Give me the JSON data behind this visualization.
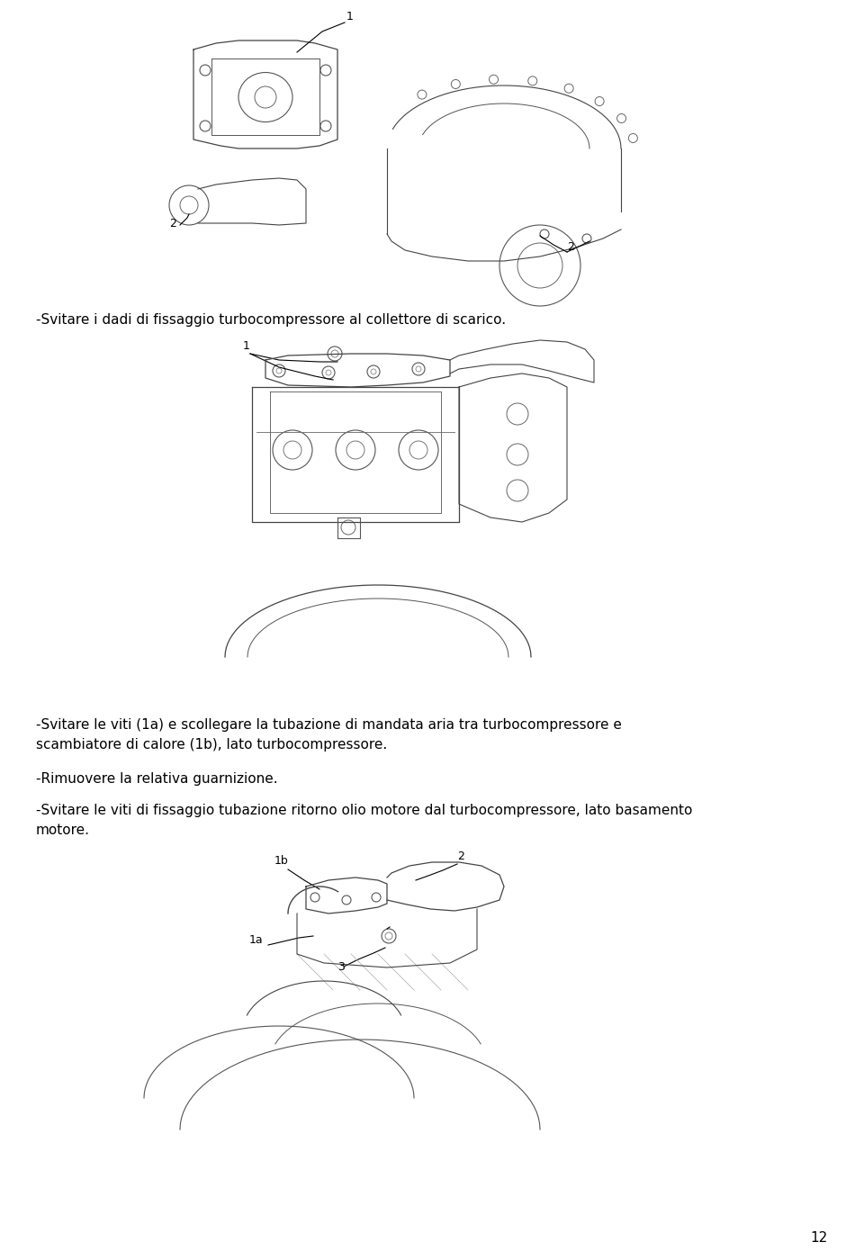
{
  "bg_color": "#ffffff",
  "page_number": "12",
  "text1": "-Svitare i dadi di fissaggio turbocompressore al collettore di scarico.",
  "text2": "-Svitare le viti (1a) e scollegare la tubazione di mandata aria tra turbocompressore e\nscambiatore di calore (1b), lato turbocompressore.",
  "text3": "-Rimuovere la relativa guarnizione.",
  "text4": "-Svitare le viti di fissaggio tubazione ritorno olio motore dal turbocompressore, lato basamento\nmotore.",
  "font_size_text": 11,
  "img1_label1": "1",
  "img1_label2a": "2",
  "img1_label2b": "2",
  "img2_label1": "1",
  "img3_label1b": "1b",
  "img3_label2": "2",
  "img3_label1a": "1a",
  "img3_label3": "3"
}
